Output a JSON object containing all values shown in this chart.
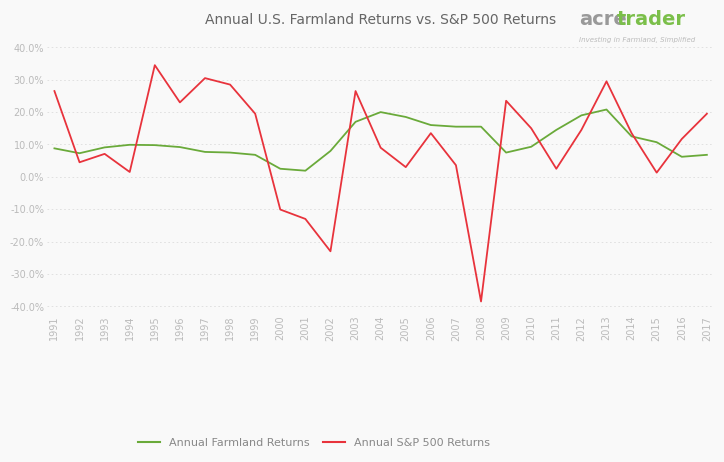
{
  "title": "Annual U.S. Farmland Returns vs. S&P 500 Returns",
  "years": [
    1991,
    1992,
    1993,
    1994,
    1995,
    1996,
    1997,
    1998,
    1999,
    2000,
    2001,
    2002,
    2003,
    2004,
    2005,
    2006,
    2007,
    2008,
    2009,
    2010,
    2011,
    2012,
    2013,
    2014,
    2015,
    2016,
    2017
  ],
  "farmland": [
    0.088,
    0.073,
    0.091,
    0.099,
    0.098,
    0.092,
    0.077,
    0.075,
    0.068,
    0.025,
    0.019,
    0.08,
    0.17,
    0.2,
    0.185,
    0.16,
    0.155,
    0.155,
    0.075,
    0.093,
    0.145,
    0.19,
    0.208,
    0.125,
    0.107,
    0.062,
    0.068
  ],
  "sp500": [
    0.265,
    0.045,
    0.071,
    0.015,
    0.345,
    0.23,
    0.305,
    0.285,
    0.195,
    -0.101,
    -0.13,
    -0.23,
    0.265,
    0.09,
    0.03,
    0.135,
    0.036,
    -0.385,
    0.235,
    0.15,
    0.025,
    0.145,
    0.295,
    0.135,
    0.013,
    0.117,
    0.195
  ],
  "farmland_color": "#6aaa3a",
  "sp500_color": "#e8333c",
  "background_color": "#f9f9f9",
  "grid_color": "#dddddd",
  "legend_farmland": "Annual Farmland Returns",
  "legend_sp500": "Annual S&P 500 Returns",
  "ylim": [
    -0.42,
    0.44
  ],
  "yticks": [
    -0.4,
    -0.3,
    -0.2,
    -0.1,
    0.0,
    0.1,
    0.2,
    0.3,
    0.4
  ],
  "title_fontsize": 10,
  "tick_fontsize": 7,
  "legend_fontsize": 8,
  "acretrader_subtext": "Investing in Farmland, Simplified"
}
